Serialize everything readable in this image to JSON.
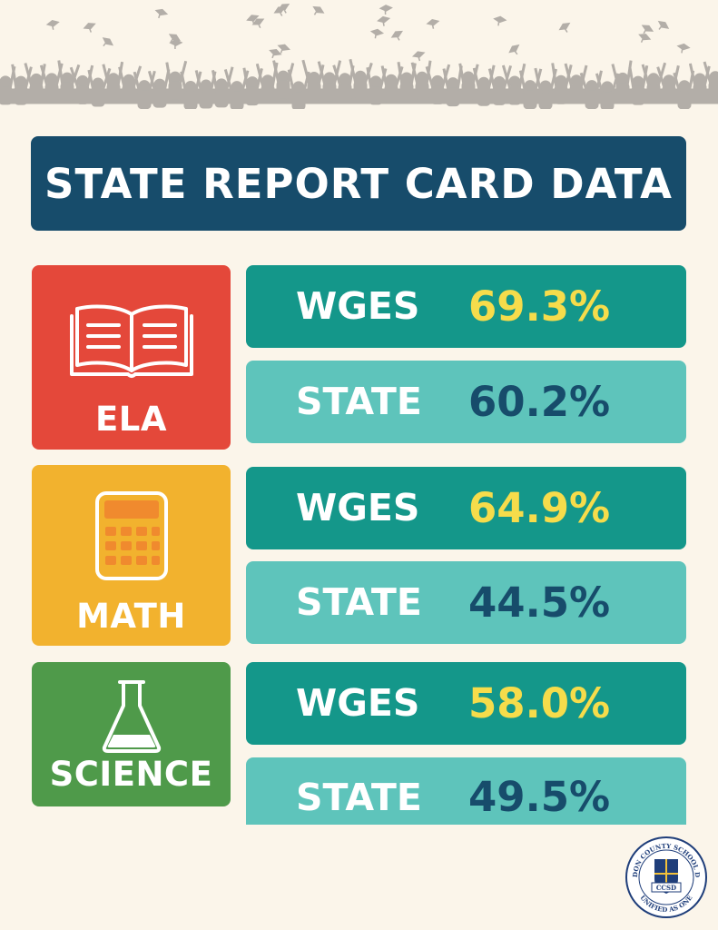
{
  "banner": {
    "title": "STATE REPORT CARD DATA"
  },
  "subjects": [
    {
      "name": "ELA",
      "icon": "open-book-icon",
      "color": "#e4483a",
      "rows": [
        {
          "who": "WGES",
          "value": "69.3%"
        },
        {
          "who": "STATE",
          "value": "60.2%"
        }
      ]
    },
    {
      "name": "MATH",
      "icon": "calculator-icon",
      "color": "#f2b22e",
      "rows": [
        {
          "who": "WGES",
          "value": "64.9%"
        },
        {
          "who": "STATE",
          "value": "44.5%"
        }
      ]
    },
    {
      "name": "SCIENCE",
      "icon": "flask-icon",
      "color": "#4f9a4a",
      "rows": [
        {
          "who": "WGES",
          "value": "58.0%"
        },
        {
          "who": "STATE",
          "value": "49.5%"
        }
      ]
    }
  ],
  "district_seal": {
    "name": "CLARENDON COUNTY SCHOOL DISTRICT",
    "abbrev": "CCSD",
    "motto": "UNIFIED AS ONE"
  },
  "colors": {
    "background": "#fbf5ea",
    "title_bar": "#174c6b",
    "wges_bar": "#14978a",
    "state_bar": "#5ec4bb",
    "wges_value": "#f6dc4b",
    "state_value": "#174c6b",
    "crowd": "#b3aea8"
  }
}
